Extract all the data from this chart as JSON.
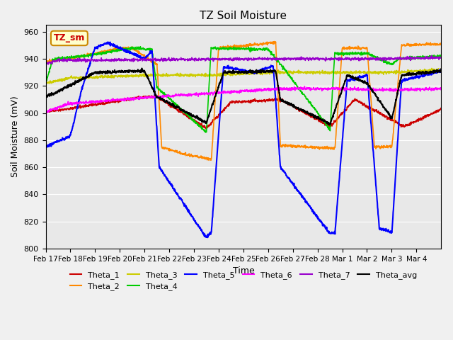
{
  "title": "TZ Soil Moisture",
  "ylabel": "Soil Moisture (mV)",
  "xlabel": "Time",
  "annotation": "TZ_sm",
  "legend_entries": [
    "Theta_1",
    "Theta_2",
    "Theta_3",
    "Theta_4",
    "Theta_5",
    "Theta_6",
    "Theta_7",
    "Theta_avg"
  ],
  "colors": {
    "Theta_1": "#cc0000",
    "Theta_2": "#ff8800",
    "Theta_3": "#cccc00",
    "Theta_4": "#00cc00",
    "Theta_5": "#0000ff",
    "Theta_6": "#ff00ff",
    "Theta_7": "#9900cc",
    "Theta_avg": "#000000"
  },
  "ylim": [
    800,
    965
  ],
  "background_color": "#e8e8e8",
  "tick_labels": [
    "Feb 17",
    "Feb 18",
    "Feb 19",
    "Feb 20",
    "Feb 21",
    "Feb 22",
    "Feb 23",
    "Feb 24",
    "Feb 25",
    "Feb 26",
    "Feb 27",
    "Feb 28",
    "Mar 1",
    "Mar 2",
    "Mar 3",
    "Mar 4"
  ]
}
